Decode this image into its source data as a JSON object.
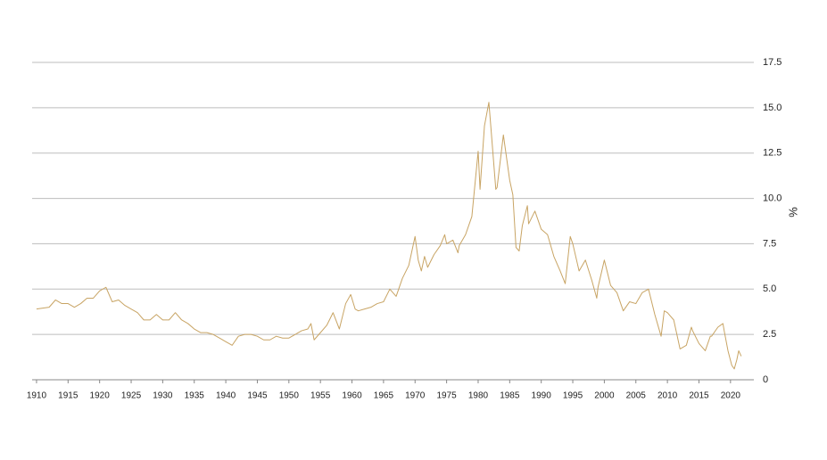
{
  "chart_data": {
    "type": "line",
    "y_label": "%",
    "color": "#c8a464",
    "grid": true,
    "xlim": [
      1909.3,
      2023.7
    ],
    "xticks": [
      1910,
      1915,
      1920,
      1925,
      1930,
      1935,
      1940,
      1945,
      1950,
      1955,
      1960,
      1965,
      1970,
      1975,
      1980,
      1985,
      1990,
      1995,
      2000,
      2005,
      2010,
      2015,
      2020
    ],
    "ylim": [
      0,
      17.5
    ],
    "yticks": [
      0,
      2.5,
      {
        "value": 5,
        "label": "5.0"
      },
      7.5,
      {
        "value": 10,
        "label": "10.0"
      },
      12.5,
      {
        "value": 15,
        "label": "15.0"
      },
      17.5
    ],
    "x": [
      1910,
      1912,
      1913,
      1914,
      1915,
      1916,
      1917,
      1918,
      1919,
      1920,
      1921,
      1922,
      1923,
      1924,
      1925,
      1926,
      1927,
      1928,
      1929,
      1930,
      1931,
      1932,
      1933,
      1934,
      1935,
      1936,
      1937,
      1938,
      1939,
      1940,
      1941,
      1942,
      1943,
      1944,
      1945,
      1946,
      1947,
      1948,
      1949,
      1950,
      1951,
      1952,
      1953,
      1953.5,
      1954,
      1955,
      1956,
      1957,
      1958,
      1959,
      1959.8,
      1960.5,
      1961,
      1962,
      1963,
      1964,
      1965,
      1966,
      1967,
      1968,
      1969,
      1970,
      1970.5,
      1971,
      1971.5,
      1972,
      1973,
      1974,
      1974.7,
      1975,
      1976,
      1976.8,
      1977,
      1978,
      1979,
      1980,
      1980.3,
      1981,
      1981.7,
      1982,
      1982.8,
      1983,
      1984,
      1985,
      1985.5,
      1986,
      1986.5,
      1987,
      1987.8,
      1988,
      1989,
      1990,
      1991,
      1992,
      1993,
      1993.8,
      1994.6,
      1995,
      1996,
      1997,
      1998,
      1998.8,
      1999,
      2000,
      2001,
      2002,
      2003,
      2004,
      2005,
      2006,
      2007,
      2008,
      2009,
      2009.5,
      2010,
      2011,
      2012,
      2013,
      2013.8,
      2014,
      2015,
      2016,
      2016.8,
      2017,
      2018,
      2018.8,
      2019,
      2019.6,
      2020.2,
      2020.6,
      2021,
      2021.3,
      2021.7
    ],
    "values": [
      3.9,
      4.0,
      4.4,
      4.2,
      4.2,
      4.0,
      4.2,
      4.5,
      4.5,
      4.9,
      5.1,
      4.3,
      4.4,
      4.1,
      3.9,
      3.7,
      3.3,
      3.3,
      3.6,
      3.3,
      3.3,
      3.7,
      3.3,
      3.1,
      2.8,
      2.6,
      2.6,
      2.5,
      2.3,
      2.1,
      1.9,
      2.4,
      2.5,
      2.5,
      2.4,
      2.2,
      2.2,
      2.4,
      2.3,
      2.3,
      2.5,
      2.7,
      2.8,
      3.1,
      2.2,
      2.6,
      3.0,
      3.7,
      2.8,
      4.2,
      4.7,
      3.9,
      3.8,
      3.9,
      4.0,
      4.2,
      4.3,
      5.0,
      4.6,
      5.6,
      6.3,
      7.9,
      6.6,
      6.0,
      6.8,
      6.2,
      6.9,
      7.4,
      8.0,
      7.5,
      7.7,
      7.0,
      7.4,
      8.0,
      9.0,
      12.6,
      10.5,
      14.0,
      15.3,
      14.0,
      10.5,
      10.6,
      13.5,
      11.0,
      10.2,
      7.3,
      7.1,
      8.5,
      9.6,
      8.6,
      9.3,
      8.3,
      8.0,
      6.8,
      6.0,
      5.3,
      7.9,
      7.5,
      6.0,
      6.6,
      5.5,
      4.5,
      5.1,
      6.6,
      5.2,
      4.8,
      3.8,
      4.3,
      4.2,
      4.8,
      5.0,
      3.6,
      2.4,
      3.8,
      3.7,
      3.3,
      1.7,
      1.9,
      2.9,
      2.7,
      2.0,
      1.6,
      2.4,
      2.4,
      2.9,
      3.1,
      2.7,
      1.6,
      0.8,
      0.6,
      1.1,
      1.6,
      1.3
    ]
  }
}
